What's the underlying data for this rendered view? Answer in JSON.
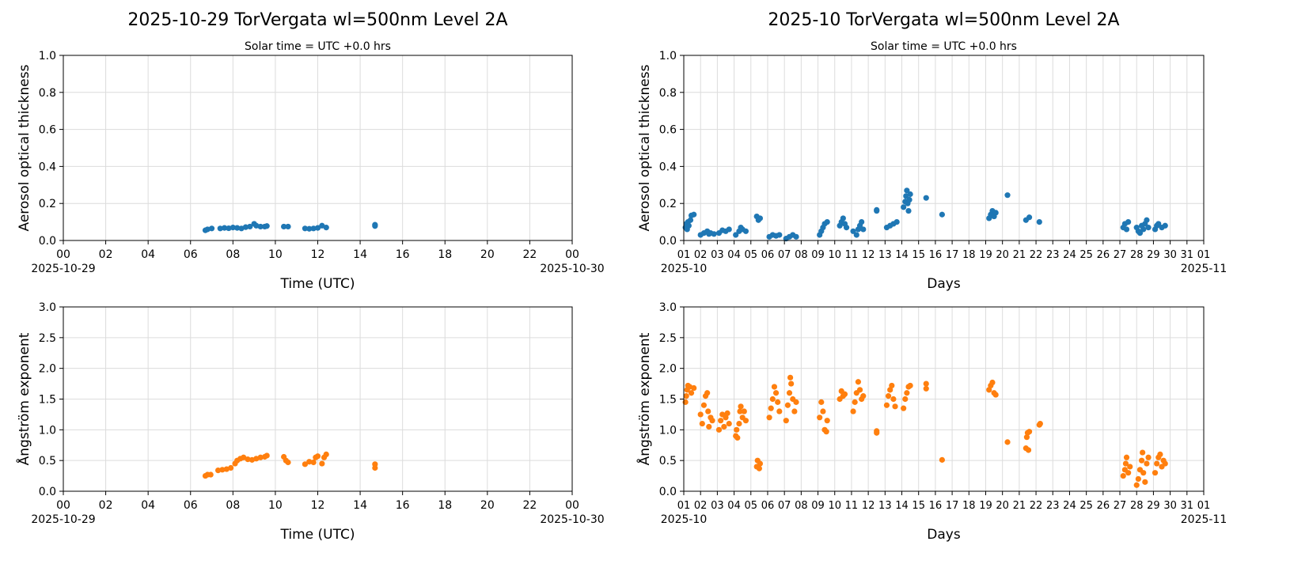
{
  "chart_data": [
    {
      "type": "scatter",
      "title": "2025-10-29  TorVergata  wl=500nm  Level 2A",
      "subtitle": "Solar time = UTC +0.0 hrs",
      "xlabel": "Time (UTC)",
      "ylabel": "Aerosol optical thickness",
      "xlim": [
        0,
        24
      ],
      "ylim": [
        0,
        1.0
      ],
      "grid": true,
      "xticks": [
        "00",
        "02",
        "04",
        "06",
        "08",
        "10",
        "12",
        "14",
        "16",
        "18",
        "20",
        "22",
        "00"
      ],
      "xtick_values": [
        0,
        2,
        4,
        6,
        8,
        10,
        12,
        14,
        16,
        18,
        20,
        22,
        24
      ],
      "x_start_label": "2025-10-29",
      "x_end_label": "2025-10-30",
      "yticks": [
        "0.0",
        "0.2",
        "0.4",
        "0.6",
        "0.8",
        "1.0"
      ],
      "ytick_values": [
        0,
        0.2,
        0.4,
        0.6,
        0.8,
        1.0
      ],
      "color": "#1f77b4",
      "points": [
        [
          6.7,
          0.055
        ],
        [
          6.8,
          0.06
        ],
        [
          7.0,
          0.065
        ],
        [
          7.4,
          0.065
        ],
        [
          7.6,
          0.068
        ],
        [
          7.8,
          0.066
        ],
        [
          8.0,
          0.07
        ],
        [
          8.2,
          0.068
        ],
        [
          8.4,
          0.065
        ],
        [
          8.6,
          0.072
        ],
        [
          8.8,
          0.075
        ],
        [
          9.0,
          0.09
        ],
        [
          9.1,
          0.08
        ],
        [
          9.3,
          0.075
        ],
        [
          9.5,
          0.075
        ],
        [
          9.6,
          0.078
        ],
        [
          10.4,
          0.075
        ],
        [
          10.6,
          0.075
        ],
        [
          11.4,
          0.065
        ],
        [
          11.6,
          0.063
        ],
        [
          11.8,
          0.065
        ],
        [
          12.0,
          0.068
        ],
        [
          12.2,
          0.08
        ],
        [
          12.4,
          0.07
        ],
        [
          14.7,
          0.078
        ],
        [
          14.7,
          0.085
        ]
      ]
    },
    {
      "type": "scatter",
      "title": "2025-10  TorVergata  wl=500nm  Level 2A",
      "subtitle": "Solar time = UTC +0.0 hrs",
      "xlabel": "Days",
      "ylabel": "Aerosol optical thickness",
      "xlim": [
        1,
        32
      ],
      "ylim": [
        0,
        1.0
      ],
      "grid": true,
      "xticks": [
        "01",
        "02",
        "03",
        "04",
        "05",
        "06",
        "07",
        "08",
        "09",
        "10",
        "11",
        "12",
        "13",
        "14",
        "15",
        "16",
        "17",
        "18",
        "19",
        "20",
        "21",
        "22",
        "23",
        "24",
        "25",
        "26",
        "27",
        "28",
        "29",
        "30",
        "31",
        "01"
      ],
      "xtick_values": [
        1,
        2,
        3,
        4,
        5,
        6,
        7,
        8,
        9,
        10,
        11,
        12,
        13,
        14,
        15,
        16,
        17,
        18,
        19,
        20,
        21,
        22,
        23,
        24,
        25,
        26,
        27,
        28,
        29,
        30,
        31,
        32
      ],
      "x_start_label": "2025-10",
      "x_end_label": "2025-11",
      "yticks": [
        "0.0",
        "0.2",
        "0.4",
        "0.6",
        "0.8",
        "1.0"
      ],
      "ytick_values": [
        0,
        0.2,
        0.4,
        0.6,
        0.8,
        1.0
      ],
      "color": "#1f77b4",
      "points": [
        [
          1.1,
          0.07
        ],
        [
          1.15,
          0.09
        ],
        [
          1.2,
          0.06
        ],
        [
          1.25,
          0.1
        ],
        [
          1.3,
          0.08
        ],
        [
          1.4,
          0.11
        ],
        [
          1.45,
          0.135
        ],
        [
          1.6,
          0.14
        ],
        [
          2.0,
          0.03
        ],
        [
          2.2,
          0.04
        ],
        [
          2.4,
          0.05
        ],
        [
          2.5,
          0.035
        ],
        [
          2.6,
          0.04
        ],
        [
          2.8,
          0.035
        ],
        [
          3.1,
          0.04
        ],
        [
          3.3,
          0.055
        ],
        [
          3.5,
          0.05
        ],
        [
          3.7,
          0.06
        ],
        [
          4.1,
          0.03
        ],
        [
          4.3,
          0.05
        ],
        [
          4.4,
          0.07
        ],
        [
          4.5,
          0.06
        ],
        [
          4.7,
          0.05
        ],
        [
          5.35,
          0.13
        ],
        [
          5.45,
          0.11
        ],
        [
          5.55,
          0.12
        ],
        [
          6.1,
          0.02
        ],
        [
          6.3,
          0.03
        ],
        [
          6.5,
          0.025
        ],
        [
          6.7,
          0.03
        ],
        [
          7.1,
          0.01
        ],
        [
          7.3,
          0.02
        ],
        [
          7.5,
          0.03
        ],
        [
          7.7,
          0.02
        ],
        [
          9.1,
          0.03
        ],
        [
          9.2,
          0.05
        ],
        [
          9.3,
          0.07
        ],
        [
          9.4,
          0.09
        ],
        [
          9.55,
          0.1
        ],
        [
          10.3,
          0.08
        ],
        [
          10.4,
          0.1
        ],
        [
          10.5,
          0.12
        ],
        [
          10.6,
          0.09
        ],
        [
          10.7,
          0.07
        ],
        [
          11.1,
          0.05
        ],
        [
          11.3,
          0.03
        ],
        [
          11.4,
          0.06
        ],
        [
          11.5,
          0.08
        ],
        [
          11.6,
          0.1
        ],
        [
          11.7,
          0.06
        ],
        [
          12.5,
          0.16
        ],
        [
          12.5,
          0.165
        ],
        [
          13.1,
          0.07
        ],
        [
          13.3,
          0.08
        ],
        [
          13.5,
          0.09
        ],
        [
          13.7,
          0.1
        ],
        [
          14.1,
          0.18
        ],
        [
          14.2,
          0.21
        ],
        [
          14.25,
          0.24
        ],
        [
          14.3,
          0.27
        ],
        [
          14.35,
          0.2
        ],
        [
          14.4,
          0.16
        ],
        [
          14.45,
          0.22
        ],
        [
          14.5,
          0.25
        ],
        [
          15.45,
          0.23
        ],
        [
          16.4,
          0.14
        ],
        [
          19.2,
          0.12
        ],
        [
          19.3,
          0.14
        ],
        [
          19.4,
          0.16
        ],
        [
          19.5,
          0.13
        ],
        [
          19.6,
          0.15
        ],
        [
          20.3,
          0.245
        ],
        [
          21.4,
          0.11
        ],
        [
          21.6,
          0.125
        ],
        [
          22.2,
          0.1
        ],
        [
          27.2,
          0.07
        ],
        [
          27.3,
          0.09
        ],
        [
          27.4,
          0.06
        ],
        [
          27.5,
          0.1
        ],
        [
          28.0,
          0.07
        ],
        [
          28.1,
          0.05
        ],
        [
          28.2,
          0.04
        ],
        [
          28.3,
          0.08
        ],
        [
          28.4,
          0.06
        ],
        [
          28.5,
          0.09
        ],
        [
          28.6,
          0.11
        ],
        [
          28.7,
          0.07
        ],
        [
          29.1,
          0.06
        ],
        [
          29.2,
          0.08
        ],
        [
          29.3,
          0.09
        ],
        [
          29.5,
          0.07
        ],
        [
          29.7,
          0.08
        ]
      ]
    },
    {
      "type": "scatter",
      "xlabel": "Time (UTC)",
      "ylabel": "Ångström exponent",
      "xlim": [
        0,
        24
      ],
      "ylim": [
        0,
        3.0
      ],
      "grid": true,
      "xticks": [
        "00",
        "02",
        "04",
        "06",
        "08",
        "10",
        "12",
        "14",
        "16",
        "18",
        "20",
        "22",
        "00"
      ],
      "xtick_values": [
        0,
        2,
        4,
        6,
        8,
        10,
        12,
        14,
        16,
        18,
        20,
        22,
        24
      ],
      "x_start_label": "2025-10-29",
      "x_end_label": "2025-10-30",
      "yticks": [
        "0.0",
        "0.5",
        "1.0",
        "1.5",
        "2.0",
        "2.5",
        "3.0"
      ],
      "ytick_values": [
        0,
        0.5,
        1.0,
        1.5,
        2.0,
        2.5,
        3.0
      ],
      "color": "#ff7f0e",
      "points": [
        [
          6.7,
          0.25
        ],
        [
          6.8,
          0.27
        ],
        [
          6.95,
          0.27
        ],
        [
          7.3,
          0.34
        ],
        [
          7.5,
          0.35
        ],
        [
          7.7,
          0.36
        ],
        [
          7.9,
          0.38
        ],
        [
          8.1,
          0.45
        ],
        [
          8.2,
          0.5
        ],
        [
          8.35,
          0.53
        ],
        [
          8.5,
          0.55
        ],
        [
          8.7,
          0.52
        ],
        [
          8.9,
          0.51
        ],
        [
          9.1,
          0.53
        ],
        [
          9.3,
          0.55
        ],
        [
          9.5,
          0.56
        ],
        [
          9.6,
          0.58
        ],
        [
          10.4,
          0.56
        ],
        [
          10.5,
          0.5
        ],
        [
          10.6,
          0.47
        ],
        [
          11.4,
          0.44
        ],
        [
          11.6,
          0.48
        ],
        [
          11.8,
          0.47
        ],
        [
          11.9,
          0.55
        ],
        [
          12.0,
          0.57
        ],
        [
          12.2,
          0.45
        ],
        [
          12.3,
          0.55
        ],
        [
          12.4,
          0.6
        ],
        [
          14.7,
          0.38
        ],
        [
          14.7,
          0.44
        ]
      ]
    },
    {
      "type": "scatter",
      "xlabel": "Days",
      "ylabel": "Ångström exponent",
      "xlim": [
        1,
        32
      ],
      "ylim": [
        0,
        3.0
      ],
      "grid": true,
      "xticks": [
        "01",
        "02",
        "03",
        "04",
        "05",
        "06",
        "07",
        "08",
        "09",
        "10",
        "11",
        "12",
        "13",
        "14",
        "15",
        "16",
        "17",
        "18",
        "19",
        "20",
        "21",
        "22",
        "23",
        "24",
        "25",
        "26",
        "27",
        "28",
        "29",
        "30",
        "31",
        "01"
      ],
      "xtick_values": [
        1,
        2,
        3,
        4,
        5,
        6,
        7,
        8,
        9,
        10,
        11,
        12,
        13,
        14,
        15,
        16,
        17,
        18,
        19,
        20,
        21,
        22,
        23,
        24,
        25,
        26,
        27,
        28,
        29,
        30,
        31,
        32
      ],
      "x_start_label": "2025-10",
      "x_end_label": "2025-11",
      "yticks": [
        "0.0",
        "0.5",
        "1.0",
        "1.5",
        "2.0",
        "2.5",
        "3.0"
      ],
      "ytick_values": [
        0,
        0.5,
        1.0,
        1.5,
        2.0,
        2.5,
        3.0
      ],
      "color": "#ff7f0e",
      "points": [
        [
          1.1,
          1.45
        ],
        [
          1.15,
          1.55
        ],
        [
          1.2,
          1.65
        ],
        [
          1.25,
          1.72
        ],
        [
          1.35,
          1.7
        ],
        [
          1.45,
          1.6
        ],
        [
          1.6,
          1.68
        ],
        [
          2.0,
          1.25
        ],
        [
          2.1,
          1.1
        ],
        [
          2.2,
          1.4
        ],
        [
          2.3,
          1.55
        ],
        [
          2.4,
          1.6
        ],
        [
          2.45,
          1.3
        ],
        [
          2.5,
          1.05
        ],
        [
          2.6,
          1.2
        ],
        [
          2.7,
          1.15
        ],
        [
          3.1,
          1.0
        ],
        [
          3.2,
          1.15
        ],
        [
          3.3,
          1.25
        ],
        [
          3.4,
          1.05
        ],
        [
          3.5,
          1.2
        ],
        [
          3.6,
          1.27
        ],
        [
          3.7,
          1.1
        ],
        [
          4.1,
          0.9
        ],
        [
          4.15,
          1.0
        ],
        [
          4.2,
          0.87
        ],
        [
          4.3,
          1.1
        ],
        [
          4.35,
          1.3
        ],
        [
          4.4,
          1.38
        ],
        [
          4.5,
          1.2
        ],
        [
          4.6,
          1.3
        ],
        [
          4.7,
          1.15
        ],
        [
          5.35,
          0.4
        ],
        [
          5.4,
          0.5
        ],
        [
          5.5,
          0.37
        ],
        [
          5.55,
          0.45
        ],
        [
          6.1,
          1.2
        ],
        [
          6.2,
          1.35
        ],
        [
          6.3,
          1.5
        ],
        [
          6.4,
          1.7
        ],
        [
          6.5,
          1.6
        ],
        [
          6.6,
          1.45
        ],
        [
          6.7,
          1.3
        ],
        [
          7.1,
          1.15
        ],
        [
          7.2,
          1.4
        ],
        [
          7.3,
          1.6
        ],
        [
          7.35,
          1.85
        ],
        [
          7.4,
          1.75
        ],
        [
          7.5,
          1.5
        ],
        [
          7.6,
          1.3
        ],
        [
          7.7,
          1.45
        ],
        [
          9.1,
          1.2
        ],
        [
          9.2,
          1.45
        ],
        [
          9.3,
          1.3
        ],
        [
          9.4,
          1.0
        ],
        [
          9.5,
          0.97
        ],
        [
          9.55,
          1.15
        ],
        [
          10.3,
          1.5
        ],
        [
          10.4,
          1.63
        ],
        [
          10.5,
          1.55
        ],
        [
          10.6,
          1.58
        ],
        [
          11.1,
          1.3
        ],
        [
          11.2,
          1.45
        ],
        [
          11.3,
          1.6
        ],
        [
          11.4,
          1.78
        ],
        [
          11.5,
          1.65
        ],
        [
          11.6,
          1.5
        ],
        [
          11.7,
          1.55
        ],
        [
          12.5,
          0.95
        ],
        [
          12.5,
          0.98
        ],
        [
          13.1,
          1.4
        ],
        [
          13.2,
          1.55
        ],
        [
          13.3,
          1.65
        ],
        [
          13.4,
          1.72
        ],
        [
          13.5,
          1.5
        ],
        [
          13.6,
          1.38
        ],
        [
          14.1,
          1.35
        ],
        [
          14.2,
          1.5
        ],
        [
          14.3,
          1.6
        ],
        [
          14.4,
          1.7
        ],
        [
          14.5,
          1.72
        ],
        [
          15.45,
          1.67
        ],
        [
          15.45,
          1.75
        ],
        [
          16.4,
          0.51
        ],
        [
          19.2,
          1.65
        ],
        [
          19.3,
          1.72
        ],
        [
          19.4,
          1.77
        ],
        [
          19.5,
          1.6
        ],
        [
          19.6,
          1.57
        ],
        [
          20.3,
          0.8
        ],
        [
          21.4,
          0.7
        ],
        [
          21.45,
          0.88
        ],
        [
          21.5,
          0.95
        ],
        [
          21.6,
          0.97
        ],
        [
          21.55,
          0.67
        ],
        [
          22.2,
          1.08
        ],
        [
          22.25,
          1.1
        ],
        [
          27.2,
          0.25
        ],
        [
          27.3,
          0.35
        ],
        [
          27.35,
          0.45
        ],
        [
          27.4,
          0.55
        ],
        [
          27.5,
          0.3
        ],
        [
          27.6,
          0.4
        ],
        [
          28.0,
          0.1
        ],
        [
          28.1,
          0.2
        ],
        [
          28.2,
          0.35
        ],
        [
          28.3,
          0.5
        ],
        [
          28.35,
          0.63
        ],
        [
          28.4,
          0.3
        ],
        [
          28.5,
          0.15
        ],
        [
          28.6,
          0.45
        ],
        [
          28.7,
          0.55
        ],
        [
          29.1,
          0.3
        ],
        [
          29.2,
          0.45
        ],
        [
          29.3,
          0.55
        ],
        [
          29.4,
          0.6
        ],
        [
          29.5,
          0.4
        ],
        [
          29.6,
          0.5
        ],
        [
          29.7,
          0.45
        ]
      ]
    }
  ]
}
